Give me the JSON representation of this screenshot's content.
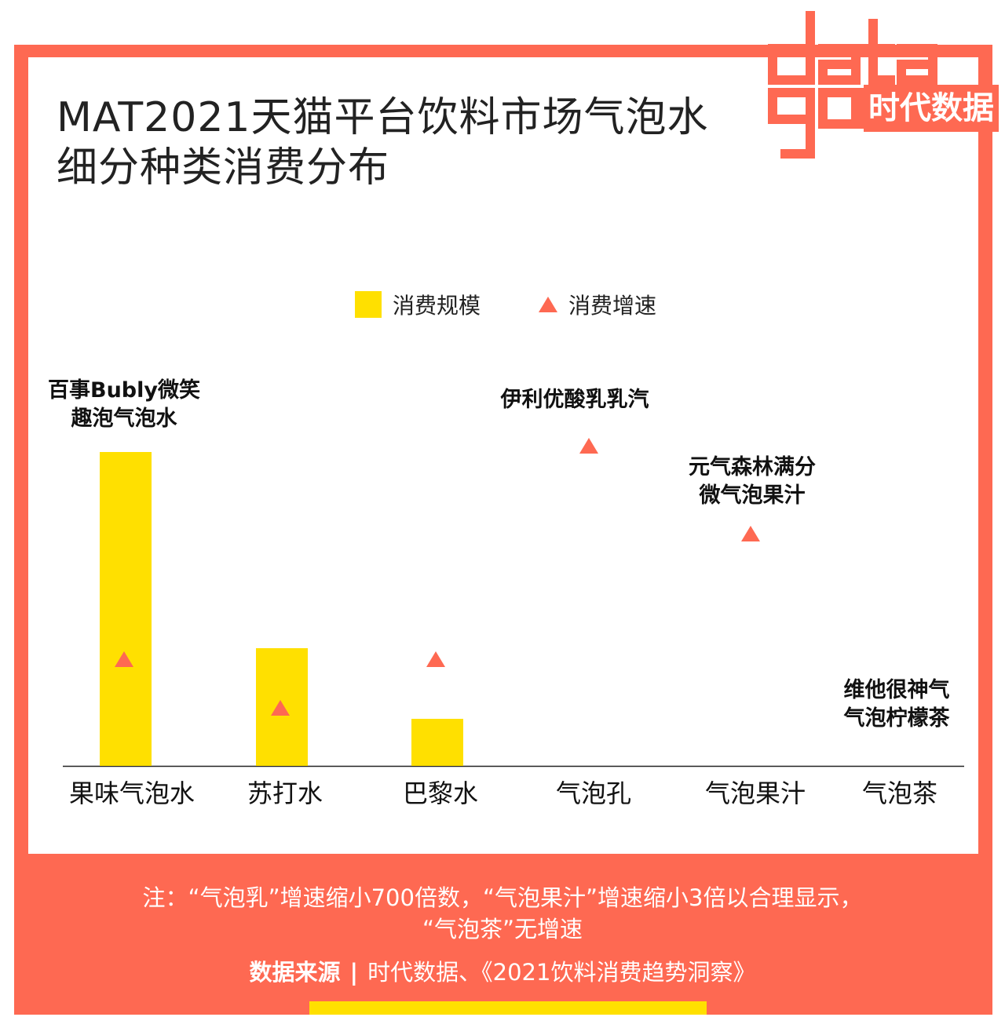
{
  "title_line1": "MAT2021天猫平台饮料市场气泡水",
  "title_line2": "细分种类消费分布",
  "logo": {
    "text": "datagoo",
    "cn": "时代数据"
  },
  "colors": {
    "accent": "#fe6952",
    "bar": "#ffe000",
    "text": "#111111"
  },
  "legend": {
    "scale": "消费规模",
    "growth": "消费增速"
  },
  "chart_data": {
    "type": "bar",
    "categories": [
      "果味气泡水",
      "苏打水",
      "巴黎水",
      "气泡孔",
      "气泡果汁",
      "气泡茶"
    ],
    "series": [
      {
        "name": "消费规模",
        "values": [
          100,
          37.5,
          15,
          0,
          0,
          0
        ]
      },
      {
        "name": "消费增速",
        "values": [
          34,
          18.5,
          34,
          102,
          74,
          null
        ]
      }
    ],
    "annotations": [
      {
        "category": "果味气泡水",
        "lines": [
          "百事Bubly微笑",
          "趣泡气泡水"
        ]
      },
      {
        "category": "气泡孔",
        "lines": [
          "伊利优酸乳乳汽"
        ]
      },
      {
        "category": "气泡果汁",
        "lines": [
          "元气森林满分",
          "微气泡果汁"
        ]
      },
      {
        "category": "气泡茶",
        "lines": [
          "维他很神气",
          "气泡柠檬茶"
        ]
      }
    ],
    "ylim": [
      0,
      130
    ],
    "grid": false,
    "legend_position": "top-center"
  },
  "note": {
    "line1": "注：“气泡乳”增速缩小700倍数，“气泡果汁”增速缩小3倍以合理显示，",
    "line2": "“气泡茶”无增速"
  },
  "source": {
    "label": "数据来源",
    "sep": "|",
    "text": "时代数据、《2021饮料消费趋势洞察》"
  }
}
